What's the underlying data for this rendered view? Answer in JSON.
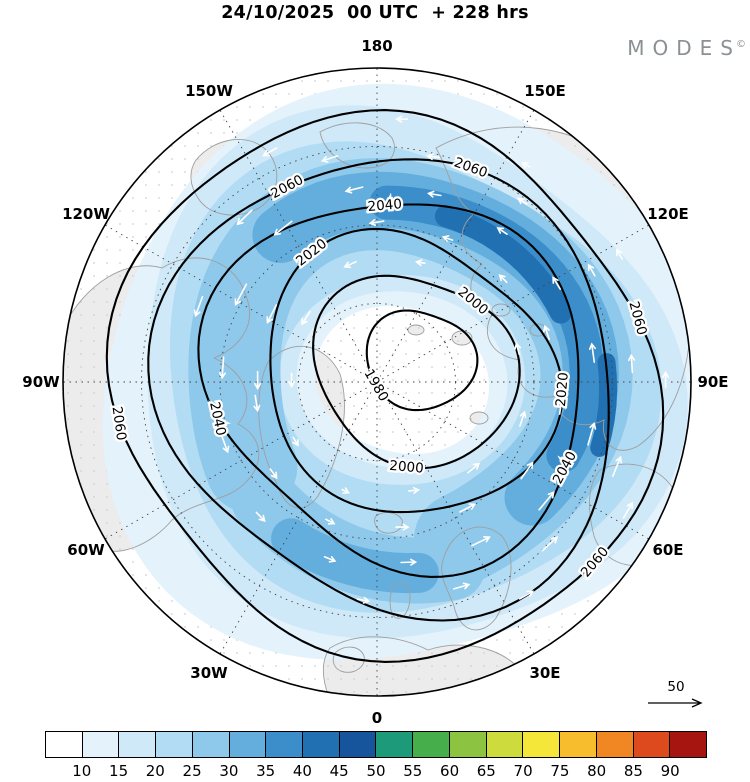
{
  "header": {
    "title": "24/10/2025  00 UTC  + 228 hrs",
    "brand": "MODES",
    "brand_mark": "©"
  },
  "map": {
    "lon_labels": [
      "180",
      "150W",
      "150E",
      "120W",
      "120E",
      "90W",
      "90E",
      "60W",
      "60E",
      "30W",
      "30E",
      "0"
    ],
    "contour_levels": [
      1980,
      2000,
      2020,
      2040,
      2060
    ],
    "contour_labels": [
      "1980",
      "2000",
      "2000",
      "2020",
      "2020",
      "2040",
      "2040",
      "2040",
      "2060",
      "2060",
      "2060",
      "2060",
      "2060"
    ],
    "land_color": "#ececec",
    "coast_color": "#9f9f9f",
    "contour_color": "#000000",
    "arrow_color": "#ffffff"
  },
  "reference_arrow": {
    "label": "50"
  },
  "colorbar": {
    "tick_labels": [
      "10",
      "15",
      "20",
      "25",
      "30",
      "35",
      "40",
      "45",
      "50",
      "55",
      "60",
      "65",
      "70",
      "75",
      "80",
      "85",
      "90"
    ],
    "colors": [
      "#ffffff",
      "#e3f2fb",
      "#cfe9f8",
      "#b2dcf3",
      "#8ec8ea",
      "#64aede",
      "#3b8ec9",
      "#2170b2",
      "#16549b",
      "#1d9a7a",
      "#46ae4a",
      "#8cc441",
      "#cddb3c",
      "#f5e63a",
      "#f8bd2c",
      "#f18723",
      "#dc4a1d",
      "#a6150f"
    ]
  }
}
